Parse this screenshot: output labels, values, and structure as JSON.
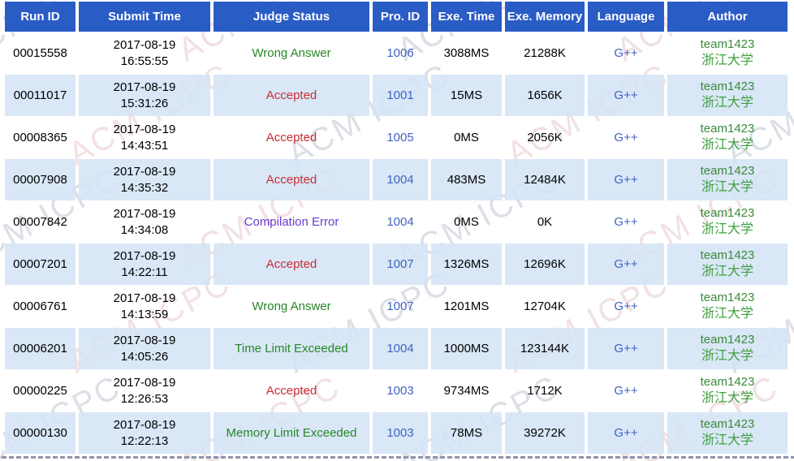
{
  "watermark": {
    "text": "ACM ICPC"
  },
  "colors": {
    "header_bg": "#2a5cc6",
    "header_text": "#ffffff",
    "stripe_bg": "rgba(212,228,246,0.88)",
    "link_blue": "#3f63c4",
    "author_team_green": "#3a8a3a",
    "author_univ_green": "#3fa03f",
    "dashed_divider": "#8f93ab",
    "status_map": {
      "Accepted": "#cb2b34",
      "Wrong Answer": "#278727",
      "Compilation Error": "#6a3bd0",
      "Time Limit Exceeded": "#278727",
      "Memory Limit Exceeded": "#278727"
    }
  },
  "table": {
    "columns": [
      {
        "key": "run_id",
        "label": "Run ID"
      },
      {
        "key": "submit_time",
        "label": "Submit Time"
      },
      {
        "key": "judge_status",
        "label": "Judge Status"
      },
      {
        "key": "pro_id",
        "label": "Pro. ID"
      },
      {
        "key": "exe_time",
        "label": "Exe. Time"
      },
      {
        "key": "exe_memory",
        "label": "Exe. Memory"
      },
      {
        "key": "language",
        "label": "Language"
      },
      {
        "key": "author",
        "label": "Author"
      }
    ],
    "rows": [
      {
        "run_id": "00015558",
        "submit_date": "2017-08-19",
        "submit_clock": "16:55:55",
        "judge_status": "Wrong Answer",
        "pro_id": "1006",
        "exe_time": "3088MS",
        "exe_memory": "21288K",
        "language": "G++",
        "author_team": "team1423",
        "author_university": "浙江大学"
      },
      {
        "run_id": "00011017",
        "submit_date": "2017-08-19",
        "submit_clock": "15:31:26",
        "judge_status": "Accepted",
        "pro_id": "1001",
        "exe_time": "15MS",
        "exe_memory": "1656K",
        "language": "G++",
        "author_team": "team1423",
        "author_university": "浙江大学"
      },
      {
        "run_id": "00008365",
        "submit_date": "2017-08-19",
        "submit_clock": "14:43:51",
        "judge_status": "Accepted",
        "pro_id": "1005",
        "exe_time": "0MS",
        "exe_memory": "2056K",
        "language": "G++",
        "author_team": "team1423",
        "author_university": "浙江大学"
      },
      {
        "run_id": "00007908",
        "submit_date": "2017-08-19",
        "submit_clock": "14:35:32",
        "judge_status": "Accepted",
        "pro_id": "1004",
        "exe_time": "483MS",
        "exe_memory": "12484K",
        "language": "G++",
        "author_team": "team1423",
        "author_university": "浙江大学"
      },
      {
        "run_id": "00007842",
        "submit_date": "2017-08-19",
        "submit_clock": "14:34:08",
        "judge_status": "Compilation Error",
        "pro_id": "1004",
        "exe_time": "0MS",
        "exe_memory": "0K",
        "language": "G++",
        "author_team": "team1423",
        "author_university": "浙江大学"
      },
      {
        "run_id": "00007201",
        "submit_date": "2017-08-19",
        "submit_clock": "14:22:11",
        "judge_status": "Accepted",
        "pro_id": "1007",
        "exe_time": "1326MS",
        "exe_memory": "12696K",
        "language": "G++",
        "author_team": "team1423",
        "author_university": "浙江大学"
      },
      {
        "run_id": "00006761",
        "submit_date": "2017-08-19",
        "submit_clock": "14:13:59",
        "judge_status": "Wrong Answer",
        "pro_id": "1007",
        "exe_time": "1201MS",
        "exe_memory": "12704K",
        "language": "G++",
        "author_team": "team1423",
        "author_university": "浙江大学"
      },
      {
        "run_id": "00006201",
        "submit_date": "2017-08-19",
        "submit_clock": "14:05:26",
        "judge_status": "Time Limit Exceeded",
        "pro_id": "1004",
        "exe_time": "1000MS",
        "exe_memory": "123144K",
        "language": "G++",
        "author_team": "team1423",
        "author_university": "浙江大学"
      },
      {
        "run_id": "00000225",
        "submit_date": "2017-08-19",
        "submit_clock": "12:26:53",
        "judge_status": "Accepted",
        "pro_id": "1003",
        "exe_time": "9734MS",
        "exe_memory": "1712K",
        "language": "G++",
        "author_team": "team1423",
        "author_university": "浙江大学"
      },
      {
        "run_id": "00000130",
        "submit_date": "2017-08-19",
        "submit_clock": "12:22:13",
        "judge_status": "Memory Limit Exceeded",
        "pro_id": "1003",
        "exe_time": "78MS",
        "exe_memory": "39272K",
        "language": "G++",
        "author_team": "team1423",
        "author_university": "浙江大学"
      }
    ]
  }
}
